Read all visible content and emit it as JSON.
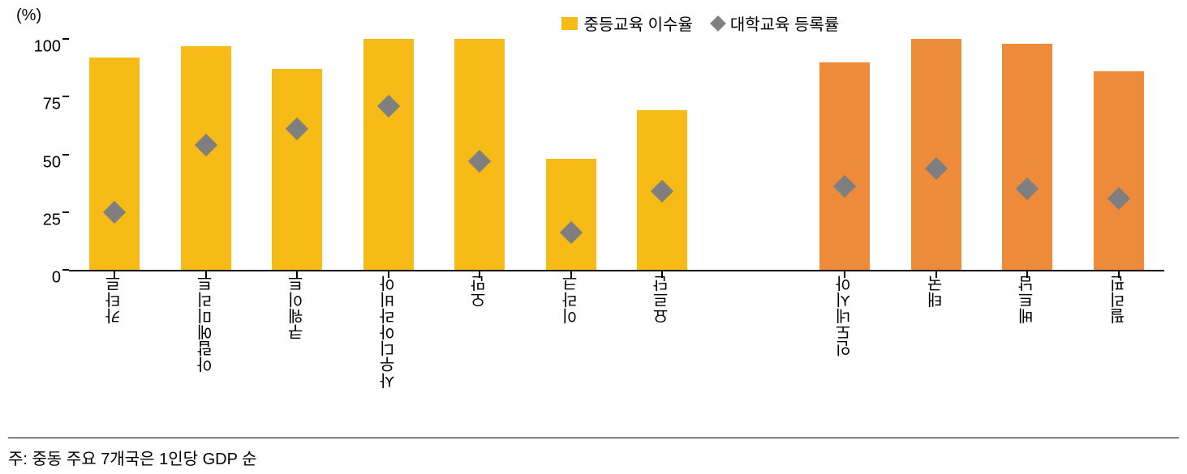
{
  "chart": {
    "type": "bar+scatter",
    "y_unit_label": "(%)",
    "ylim": [
      0,
      100
    ],
    "ytick_step": 25,
    "yticks": [
      0,
      25,
      50,
      75,
      100
    ],
    "plot_bg": "#ffffff",
    "axis_color": "#000000",
    "bar_width_ratio": 0.55,
    "legend": {
      "items": [
        {
          "label": "중등교육 이수율",
          "type": "bar",
          "color": "#f6bb17"
        },
        {
          "label": "대학교육 등록률",
          "type": "diamond",
          "color": "#7f7f7f"
        }
      ]
    },
    "groups": [
      {
        "slot": 0,
        "label": "카타르",
        "bar": 92,
        "bar_color": "#f6bb17",
        "diamond": 25
      },
      {
        "slot": 1,
        "label": "아랍에미리트",
        "bar": 97,
        "bar_color": "#f6bb17",
        "diamond": 54
      },
      {
        "slot": 2,
        "label": "쿠웨이트",
        "bar": 87,
        "bar_color": "#f6bb17",
        "diamond": 61
      },
      {
        "slot": 3,
        "label": "사우디아라비아",
        "bar": 100,
        "bar_color": "#f6bb17",
        "diamond": 71
      },
      {
        "slot": 4,
        "label": "오만",
        "bar": 100,
        "bar_color": "#f6bb17",
        "diamond": 47
      },
      {
        "slot": 5,
        "label": "이라크",
        "bar": 48,
        "bar_color": "#f6bb17",
        "diamond": 16
      },
      {
        "slot": 6,
        "label": "요르단",
        "bar": 69,
        "bar_color": "#f6bb17",
        "diamond": 34
      },
      {
        "slot": 8,
        "label": "인도네시아",
        "bar": 90,
        "bar_color": "#ed8b3b",
        "diamond": 36
      },
      {
        "slot": 9,
        "label": "태국",
        "bar": 100,
        "bar_color": "#ed8b3b",
        "diamond": 44
      },
      {
        "slot": 10,
        "label": "베트남",
        "bar": 98,
        "bar_color": "#ed8b3b",
        "diamond": 35
      },
      {
        "slot": 11,
        "label": "필리핀",
        "bar": 86,
        "bar_color": "#ed8b3b",
        "diamond": 31
      }
    ],
    "slot_count": 12,
    "diamond_color": "#7f7f7f",
    "label_fontsize": 20
  },
  "footnote": "주: 중동 주요 7개국은 1인당 GDP 순"
}
